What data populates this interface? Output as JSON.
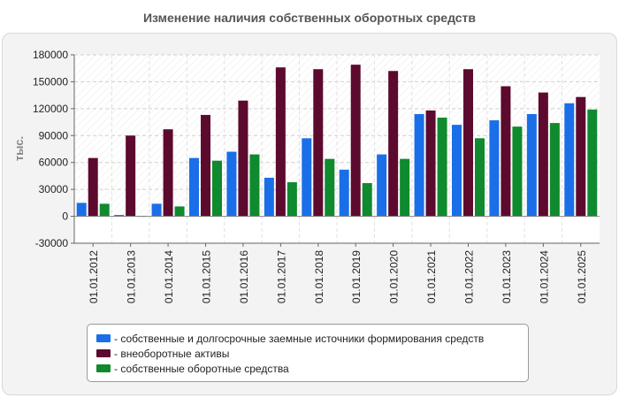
{
  "chart_data": {
    "type": "bar",
    "title": "Изменение наличия собственных оборотных средств",
    "xlabel": "",
    "ylabel": "тыс.",
    "ylim": [
      -30000,
      180000
    ],
    "yticks": [
      -30000,
      0,
      30000,
      60000,
      90000,
      120000,
      150000,
      180000
    ],
    "grid": true,
    "legend_position": "bottom",
    "categories": [
      "01.01.2012",
      "01.01.2013",
      "01.01.2014",
      "01.01.2015",
      "01.01.2016",
      "01.01.2017",
      "01.01.2018",
      "01.01.2019",
      "01.01.2020",
      "01.01.2021",
      "01.01.2022",
      "01.01.2023",
      "01.01.2024",
      "01.01.2025"
    ],
    "series": [
      {
        "name": "- собственные и долгосрочные заемные источники формирования средств",
        "color": "#1a6fe8",
        "values": [
          15000,
          1500,
          14000,
          65000,
          72000,
          43000,
          87000,
          52000,
          69000,
          114000,
          102000,
          107000,
          114000,
          126000
        ]
      },
      {
        "name": "- внеоборотные активы",
        "color": "#5c0a2e",
        "values": [
          65000,
          90000,
          97000,
          113000,
          129000,
          166000,
          164000,
          169000,
          162000,
          118000,
          164000,
          145000,
          138000,
          133000
        ]
      },
      {
        "name": "- собственные оборотные средства",
        "color": "#0f8a2e",
        "values": [
          14000,
          500,
          11000,
          62000,
          69000,
          38000,
          64000,
          37000,
          64000,
          110000,
          87000,
          100000,
          104000,
          119000
        ]
      }
    ]
  }
}
